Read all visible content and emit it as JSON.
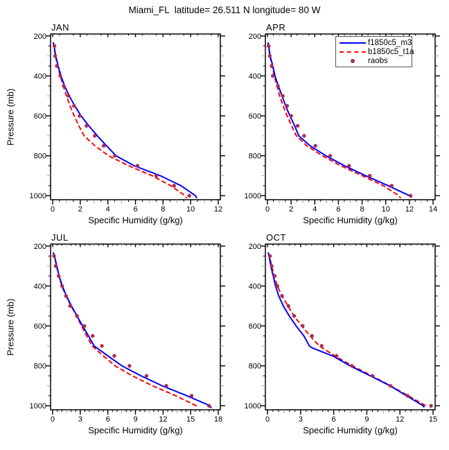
{
  "title": "Miami_FL  latitude= 26.511 N longitude= 80 W",
  "axes": {
    "y_label": "Pressure (mb)",
    "x_label": "Specific Humidity (g/kg)",
    "y_ticks": [
      200,
      400,
      600,
      800,
      1000
    ],
    "y_minor_step": 50,
    "y_axis_inverted": true
  },
  "legend": {
    "items": [
      {
        "label": "f1850c5_m3",
        "style": "solid-line",
        "color": "#0000ff"
      },
      {
        "label": "b1850c5_t1a",
        "style": "dashed-line",
        "color": "#ff0000"
      },
      {
        "label": "raobs",
        "style": "dot",
        "color": "#aa2d55"
      }
    ]
  },
  "chart_data": [
    {
      "type": "line",
      "title": "JAN",
      "xlabel": "Specific Humidity (g/kg)",
      "ylabel": "Pressure (mb)",
      "xlim": [
        0,
        12
      ],
      "xtick_step": 2,
      "ylim": [
        1020,
        190
      ],
      "point_format": "[pressure_mb, specific_humidity_g_per_kg]",
      "series": [
        {
          "name": "f1850c5_m3",
          "mode": "line",
          "dash": false,
          "color": "#0000ff",
          "points": [
            [
              232,
              0.05
            ],
            [
              250,
              0.1
            ],
            [
              300,
              0.22
            ],
            [
              350,
              0.4
            ],
            [
              400,
              0.6
            ],
            [
              450,
              0.87
            ],
            [
              500,
              1.2
            ],
            [
              550,
              1.6
            ],
            [
              600,
              2.06
            ],
            [
              650,
              2.62
            ],
            [
              700,
              3.24
            ],
            [
              750,
              3.9
            ],
            [
              800,
              4.6
            ],
            [
              850,
              5.9
            ],
            [
              900,
              7.8
            ],
            [
              950,
              9.3
            ],
            [
              1000,
              10.35
            ],
            [
              1012,
              10.45
            ]
          ]
        },
        {
          "name": "b1850c5_t1a",
          "mode": "line",
          "dash": true,
          "color": "#ff0000",
          "points": [
            [
              232,
              0.04
            ],
            [
              250,
              0.08
            ],
            [
              300,
              0.2
            ],
            [
              350,
              0.35
            ],
            [
              400,
              0.55
            ],
            [
              450,
              0.77
            ],
            [
              500,
              1.0
            ],
            [
              550,
              1.26
            ],
            [
              600,
              1.56
            ],
            [
              650,
              1.9
            ],
            [
              700,
              2.28
            ],
            [
              750,
              3.07
            ],
            [
              800,
              4.05
            ],
            [
              850,
              5.5
            ],
            [
              900,
              7.2
            ],
            [
              950,
              8.55
            ],
            [
              1000,
              9.6
            ],
            [
              1012,
              9.7
            ]
          ]
        },
        {
          "name": "raobs",
          "mode": "scatter",
          "color": "#aa2d55",
          "points": [
            [
              250,
              0.13
            ],
            [
              300,
              0.18
            ],
            [
              350,
              0.3
            ],
            [
              400,
              0.55
            ],
            [
              450,
              0.8
            ],
            [
              500,
              1.15
            ],
            [
              550,
              1.55
            ],
            [
              600,
              1.95
            ],
            [
              650,
              2.45
            ],
            [
              700,
              3.05
            ],
            [
              750,
              3.7
            ],
            [
              800,
              4.5
            ],
            [
              850,
              6.15
            ],
            [
              900,
              7.5
            ],
            [
              950,
              8.8
            ],
            [
              1000,
              9.9
            ]
          ]
        }
      ]
    },
    {
      "type": "line",
      "title": "APR",
      "xlabel": "Specific Humidity (g/kg)",
      "ylabel": "Pressure (mb)",
      "xlim": [
        0,
        14
      ],
      "xtick_step": 2,
      "ylim": [
        1020,
        190
      ],
      "point_format": "[pressure_mb, specific_humidity_g_per_kg]",
      "series": [
        {
          "name": "f1850c5_m3",
          "mode": "line",
          "dash": false,
          "color": "#0000ff",
          "points": [
            [
              232,
              0.05
            ],
            [
              250,
              0.1
            ],
            [
              300,
              0.23
            ],
            [
              350,
              0.45
            ],
            [
              400,
              0.64
            ],
            [
              450,
              0.92
            ],
            [
              500,
              1.23
            ],
            [
              550,
              1.54
            ],
            [
              600,
              1.89
            ],
            [
              650,
              2.3
            ],
            [
              700,
              2.65
            ],
            [
              750,
              3.6
            ],
            [
              800,
              4.95
            ],
            [
              850,
              6.5
            ],
            [
              900,
              8.3
            ],
            [
              950,
              10.2
            ],
            [
              1000,
              12.0
            ],
            [
              1008,
              12.2
            ]
          ]
        },
        {
          "name": "b1850c5_t1a",
          "mode": "line",
          "dash": true,
          "color": "#ff0000",
          "points": [
            [
              232,
              0.04
            ],
            [
              250,
              0.08
            ],
            [
              300,
              0.21
            ],
            [
              350,
              0.39
            ],
            [
              400,
              0.58
            ],
            [
              450,
              0.8
            ],
            [
              500,
              1.03
            ],
            [
              550,
              1.33
            ],
            [
              600,
              1.66
            ],
            [
              650,
              2.05
            ],
            [
              700,
              2.44
            ],
            [
              750,
              3.33
            ],
            [
              800,
              4.65
            ],
            [
              850,
              6.2
            ],
            [
              900,
              8.0
            ],
            [
              950,
              9.8
            ],
            [
              1000,
              11.1
            ],
            [
              1012,
              11.25
            ]
          ]
        },
        {
          "name": "raobs",
          "mode": "scatter",
          "color": "#aa2d55",
          "points": [
            [
              250,
              0.1
            ],
            [
              300,
              0.2
            ],
            [
              350,
              0.35
            ],
            [
              400,
              0.45
            ],
            [
              450,
              0.88
            ],
            [
              500,
              1.3
            ],
            [
              550,
              1.66
            ],
            [
              600,
              2.0
            ],
            [
              650,
              2.55
            ],
            [
              700,
              3.1
            ],
            [
              750,
              4.05
            ],
            [
              800,
              5.3
            ],
            [
              850,
              6.9
            ],
            [
              900,
              8.65
            ],
            [
              950,
              10.5
            ],
            [
              1000,
              12.1
            ]
          ]
        }
      ]
    },
    {
      "type": "line",
      "title": "JUL",
      "xlabel": "Specific Humidity (g/kg)",
      "ylabel": "Pressure (mb)",
      "xlim": [
        0,
        18
      ],
      "xtick_step": 3,
      "ylim": [
        1020,
        190
      ],
      "point_format": "[pressure_mb, specific_humidity_g_per_kg]",
      "series": [
        {
          "name": "f1850c5_m3",
          "mode": "line",
          "dash": false,
          "color": "#0000ff",
          "points": [
            [
              232,
              0.07
            ],
            [
              250,
              0.2
            ],
            [
              300,
              0.45
            ],
            [
              350,
              0.7
            ],
            [
              400,
              1.05
            ],
            [
              450,
              1.5
            ],
            [
              500,
              2.05
            ],
            [
              550,
              2.65
            ],
            [
              600,
              3.25
            ],
            [
              650,
              3.9
            ],
            [
              700,
              4.5
            ],
            [
              750,
              6.0
            ],
            [
              800,
              7.55
            ],
            [
              850,
              9.6
            ],
            [
              900,
              11.9
            ],
            [
              950,
              14.6
            ],
            [
              1000,
              17.1
            ],
            [
              1012,
              17.25
            ]
          ]
        },
        {
          "name": "b1850c5_t1a",
          "mode": "line",
          "dash": true,
          "color": "#ff0000",
          "points": [
            [
              232,
              0.06
            ],
            [
              250,
              0.18
            ],
            [
              300,
              0.42
            ],
            [
              350,
              0.68
            ],
            [
              400,
              1.0
            ],
            [
              450,
              1.45
            ],
            [
              500,
              2.0
            ],
            [
              550,
              2.6
            ],
            [
              600,
              3.15
            ],
            [
              650,
              3.7
            ],
            [
              700,
              4.3
            ],
            [
              750,
              5.5
            ],
            [
              800,
              6.8
            ],
            [
              850,
              8.65
            ],
            [
              900,
              10.85
            ],
            [
              950,
              13.4
            ],
            [
              1000,
              15.6
            ],
            [
              1008,
              15.75
            ]
          ]
        },
        {
          "name": "raobs",
          "mode": "scatter",
          "color": "#aa2d55",
          "points": [
            [
              250,
              0.15
            ],
            [
              300,
              0.33
            ],
            [
              350,
              0.65
            ],
            [
              400,
              1.03
            ],
            [
              450,
              1.45
            ],
            [
              500,
              1.9
            ],
            [
              550,
              2.65
            ],
            [
              600,
              3.45
            ],
            [
              650,
              4.35
            ],
            [
              700,
              5.35
            ],
            [
              750,
              6.7
            ],
            [
              800,
              8.35
            ],
            [
              850,
              10.2
            ],
            [
              900,
              12.35
            ],
            [
              950,
              15.1
            ],
            [
              1000,
              17.0
            ]
          ]
        }
      ]
    },
    {
      "type": "line",
      "title": "OCT",
      "xlabel": "Specific Humidity (g/kg)",
      "ylabel": "Pressure (mb)",
      "xlim": [
        0,
        15
      ],
      "xtick_step": 3,
      "ylim": [
        1020,
        190
      ],
      "point_format": "[pressure_mb, specific_humidity_g_per_kg]",
      "series": [
        {
          "name": "f1850c5_m3",
          "mode": "line",
          "dash": false,
          "color": "#0000ff",
          "points": [
            [
              232,
              0.06
            ],
            [
              250,
              0.15
            ],
            [
              300,
              0.31
            ],
            [
              350,
              0.52
            ],
            [
              400,
              0.73
            ],
            [
              450,
              1.02
            ],
            [
              500,
              1.44
            ],
            [
              550,
              1.98
            ],
            [
              600,
              2.6
            ],
            [
              650,
              3.3
            ],
            [
              700,
              3.8
            ],
            [
              710,
              4.05
            ],
            [
              750,
              5.9
            ],
            [
              800,
              7.5
            ],
            [
              850,
              9.3
            ],
            [
              900,
              11.1
            ],
            [
              950,
              12.6
            ],
            [
              1000,
              14.1
            ],
            [
              1008,
              14.2
            ]
          ]
        },
        {
          "name": "b1850c5_t1a",
          "mode": "line",
          "dash": true,
          "color": "#ff0000",
          "points": [
            [
              232,
              0.06
            ],
            [
              250,
              0.19
            ],
            [
              300,
              0.38
            ],
            [
              350,
              0.61
            ],
            [
              400,
              0.9
            ],
            [
              450,
              1.32
            ],
            [
              500,
              1.86
            ],
            [
              550,
              2.4
            ],
            [
              600,
              3.11
            ],
            [
              650,
              3.86
            ],
            [
              700,
              4.7
            ],
            [
              750,
              6.1
            ],
            [
              800,
              7.7
            ],
            [
              850,
              9.45
            ],
            [
              900,
              11.15
            ],
            [
              950,
              12.75
            ],
            [
              1000,
              14.35
            ],
            [
              1008,
              14.5
            ]
          ]
        },
        {
          "name": "raobs",
          "mode": "scatter",
          "color": "#aa2d55",
          "points": [
            [
              250,
              0.23
            ],
            [
              300,
              0.38
            ],
            [
              350,
              0.65
            ],
            [
              400,
              0.9
            ],
            [
              450,
              1.32
            ],
            [
              500,
              1.9
            ],
            [
              550,
              2.42
            ],
            [
              600,
              3.19
            ],
            [
              650,
              4.03
            ],
            [
              700,
              4.91
            ],
            [
              750,
              6.26
            ],
            [
              800,
              7.64
            ],
            [
              850,
              9.52
            ],
            [
              900,
              11.13
            ],
            [
              950,
              12.69
            ],
            [
              1000,
              14.82
            ]
          ]
        }
      ]
    }
  ]
}
